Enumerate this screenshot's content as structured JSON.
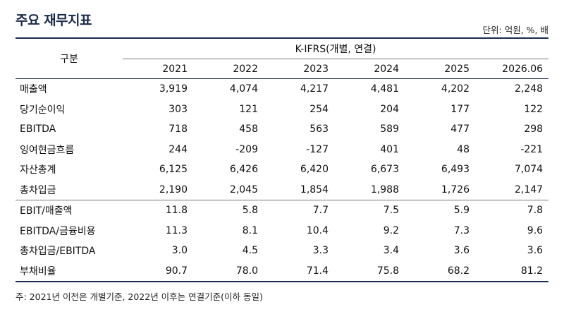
{
  "title": "주요 재무지표",
  "unit": "단위: 억원, %, 배",
  "table": {
    "row_header": "구분",
    "group_header": "K-IFRS(개별, 연결)",
    "years": [
      "2021",
      "2022",
      "2023",
      "2024",
      "2025",
      "2026.06"
    ],
    "rows": [
      {
        "label": "매출액",
        "values": [
          "3,919",
          "4,074",
          "4,217",
          "4,481",
          "4,202",
          "2,248"
        ]
      },
      {
        "label": "당기순이익",
        "values": [
          "303",
          "121",
          "254",
          "204",
          "177",
          "122"
        ]
      },
      {
        "label": "EBITDA",
        "values": [
          "718",
          "458",
          "563",
          "589",
          "477",
          "298"
        ]
      },
      {
        "label": "잉여현금흐름",
        "values": [
          "244",
          "-209",
          "-127",
          "401",
          "48",
          "-221"
        ]
      },
      {
        "label": "자산총계",
        "values": [
          "6,125",
          "6,426",
          "6,420",
          "6,673",
          "6,493",
          "7,074"
        ]
      },
      {
        "label": "총차입금",
        "values": [
          "2,190",
          "2,045",
          "1,854",
          "1,988",
          "1,726",
          "2,147"
        ]
      },
      {
        "label": "EBIT/매출액",
        "values": [
          "11.8",
          "5.8",
          "7.7",
          "7.5",
          "5.9",
          "7.8"
        ]
      },
      {
        "label": "EBITDA/금융비용",
        "values": [
          "11.3",
          "8.1",
          "10.4",
          "9.2",
          "7.3",
          "9.6"
        ]
      },
      {
        "label": "총차입금/EBITDA",
        "values": [
          "3.0",
          "4.5",
          "3.3",
          "3.4",
          "3.6",
          "3.6"
        ]
      },
      {
        "label": "부채비율",
        "values": [
          "90.7",
          "78.0",
          "71.4",
          "75.8",
          "68.2",
          "81.2"
        ]
      }
    ]
  },
  "note": "주: 2021년 이전은 개별기준, 2022년 이후는 연결기준(이하 동일)",
  "colors": {
    "heading": "#1b2a4a",
    "text": "#111111",
    "rule": "#1b2a4a"
  }
}
